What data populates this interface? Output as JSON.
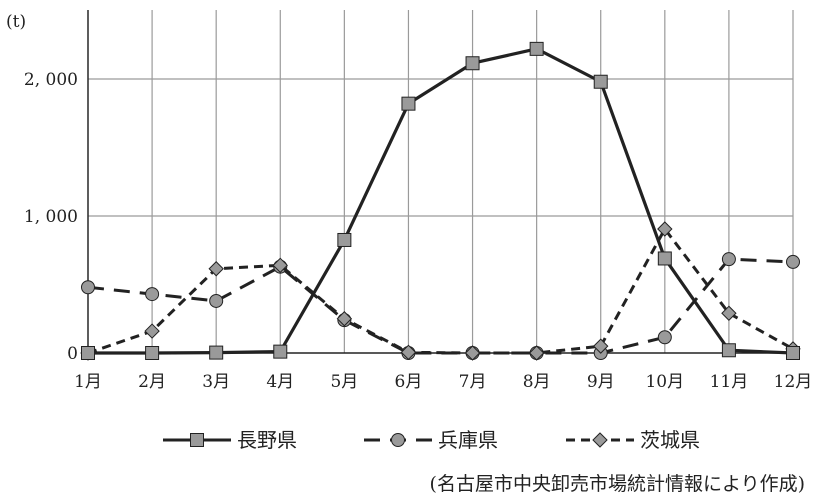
{
  "chart_data": {
    "type": "line",
    "ylabel": "(t)",
    "xlabel": "",
    "categories": [
      "1月",
      "2月",
      "3月",
      "4月",
      "5月",
      "6月",
      "7月",
      "8月",
      "9月",
      "10月",
      "11月",
      "12月"
    ],
    "ylim": [
      0,
      2500
    ],
    "yticks": [
      0,
      1000,
      2000
    ],
    "ytick_labels": [
      "0",
      "1, 000",
      "2, 000"
    ],
    "grid": true,
    "legend_position": "bottom",
    "series": [
      {
        "name": "長野県",
        "marker": "square",
        "line": "solid",
        "values": [
          0,
          0,
          3,
          10,
          825,
          1820,
          2115,
          2220,
          1980,
          690,
          20,
          0
        ]
      },
      {
        "name": "兵庫県",
        "marker": "circle",
        "line": "dashed",
        "values": [
          480,
          430,
          380,
          630,
          240,
          0,
          0,
          0,
          0,
          115,
          685,
          665
        ]
      },
      {
        "name": "茨城県",
        "marker": "diamond",
        "line": "dash-dot",
        "values": [
          0,
          160,
          615,
          640,
          250,
          5,
          0,
          0,
          50,
          905,
          290,
          30
        ]
      }
    ],
    "source_note": "(名古屋市中央卸売市場統計情報により作成)"
  },
  "colors": {
    "line": "#222222",
    "marker_fill": "#9a9a9a",
    "grid": "#9a9a9a"
  }
}
